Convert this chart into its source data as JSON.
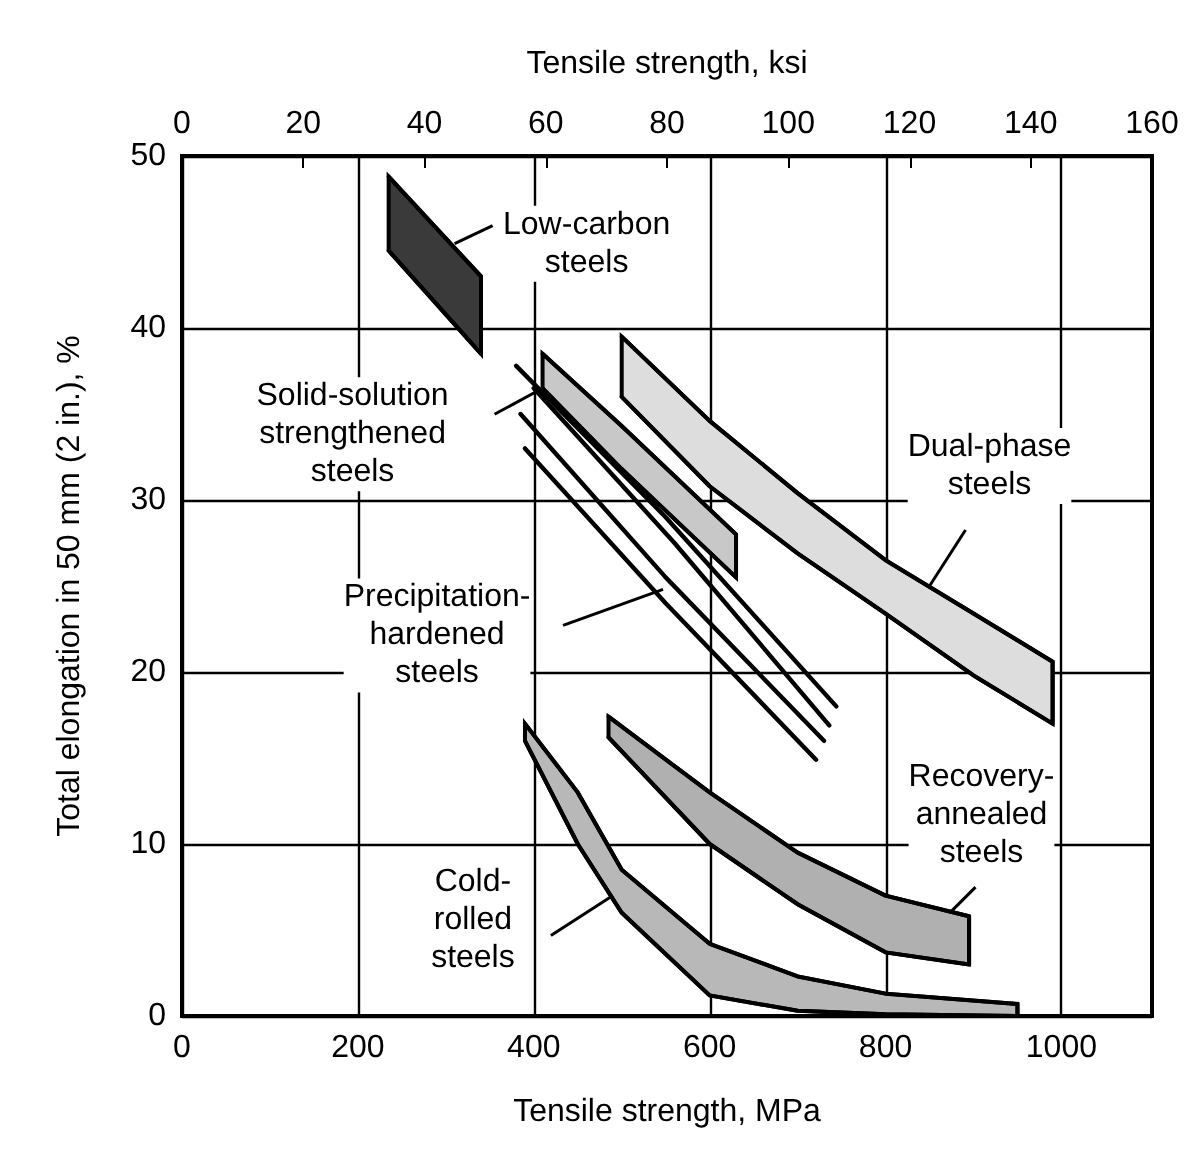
{
  "chart_data": {
    "type": "area",
    "xlabel": "Tensile strength, MPa",
    "x2label": "Tensile strength, ksi",
    "ylabel": "Total elongation in 50 mm (2 in.), %",
    "xlim": [
      0,
      1103
    ],
    "xticks": [
      0,
      200,
      400,
      600,
      800,
      1000
    ],
    "x2lim": [
      0,
      160
    ],
    "x2ticks": [
      0,
      20,
      40,
      60,
      80,
      100,
      120,
      140,
      160
    ],
    "ylim": [
      0,
      50
    ],
    "yticks": [
      0,
      10,
      20,
      30,
      40,
      50
    ],
    "grid": true,
    "series": [
      {
        "type": "area",
        "color": "#3a3a3a",
        "x": [
          235,
          340,
          340,
          235
        ],
        "values": [
          48.8,
          43,
          38.5,
          44.5
        ]
      },
      {
        "type": "area",
        "color": "#dddddd",
        "x": [
          500,
          600,
          700,
          800,
          900,
          990,
          990,
          900,
          800,
          700,
          600,
          500
        ],
        "values": [
          39.5,
          34.6,
          30.4,
          26.5,
          23.4,
          20.6,
          17,
          19.8,
          23.4,
          26.9,
          30.8,
          36
        ]
      },
      {
        "type": "area",
        "color": "#c8c8c8",
        "x": [
          410,
          500,
          630,
          630,
          500,
          410
        ],
        "values": [
          38.5,
          34.3,
          28,
          25.5,
          31.8,
          36.5
        ]
      },
      {
        "type": "line",
        "color": "#000000",
        "x": [
          380,
          550,
          744
        ],
        "values": [
          37.8,
          29,
          18
        ]
      },
      {
        "type": "line",
        "color": "#000000",
        "x": [
          400,
          560,
          736
        ],
        "values": [
          36.5,
          27.5,
          16.9
        ]
      },
      {
        "type": "line",
        "color": "#000000",
        "x": [
          385,
          550,
          730
        ],
        "values": [
          35,
          25.5,
          16
        ]
      },
      {
        "type": "line",
        "color": "#000000",
        "x": [
          390,
          550,
          721
        ],
        "values": [
          33,
          24,
          14.9
        ]
      },
      {
        "type": "area",
        "color": "#b0b0b0",
        "x": [
          485,
          600,
          700,
          800,
          895,
          895,
          800,
          700,
          600,
          485
        ],
        "values": [
          17.4,
          13,
          9.5,
          7,
          5.8,
          3,
          3.7,
          6.5,
          10,
          16.2
        ]
      },
      {
        "type": "area",
        "color": "#b8b8b8",
        "x": [
          390,
          450,
          500,
          600,
          700,
          800,
          950,
          950,
          800,
          700,
          600,
          500,
          450,
          390
        ],
        "values": [
          17,
          13,
          8.5,
          4.2,
          2.3,
          1.3,
          0.7,
          0,
          0.1,
          0.3,
          1.2,
          6,
          10,
          16
        ]
      }
    ],
    "annotations": [
      {
        "text": "Low-carbon\nsteels",
        "x": 310,
        "y": 44.9
      },
      {
        "text": "Solid-solution\nstrengthened\nsteels",
        "x": 410,
        "y": 36.5
      },
      {
        "text": "Precipitation-\nhardened\nsteels",
        "x": 547,
        "y": 24.8
      },
      {
        "text": "Dual-phase\nsteels",
        "x": 850,
        "y": 25
      },
      {
        "text": "Recovery-\nannealed\nsteels",
        "x": 875,
        "y": 6.1
      },
      {
        "text": "Cold-\nrolled\nsteels",
        "x": 490,
        "y": 7
      }
    ]
  }
}
